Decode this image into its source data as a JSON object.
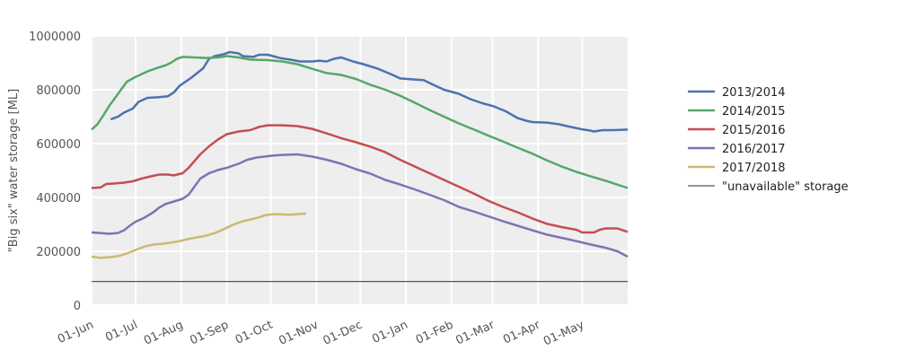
{
  "chart_data": {
    "type": "line",
    "ylabel": "\"Big six\" water storage [ML]",
    "ylim": [
      0,
      1000000
    ],
    "yticks": [
      0,
      200000,
      400000,
      600000,
      800000,
      1000000
    ],
    "ytick_labels": [
      "0",
      "200000",
      "400000",
      "600000",
      "800000",
      "1000000"
    ],
    "x_unit": "day of season starting 01-Jun",
    "xlim": [
      0,
      365
    ],
    "xticks": [
      0,
      30,
      61,
      92,
      122,
      153,
      183,
      214,
      245,
      273,
      304,
      334
    ],
    "xtick_labels": [
      "01-Jun",
      "01-Jul",
      "01-Aug",
      "01-Sep",
      "01-Oct",
      "01-Nov",
      "01-Dec",
      "01-Jan",
      "01-Feb",
      "01-Mar",
      "01-Apr",
      "01-May"
    ],
    "grid": true,
    "legend_position": "right",
    "reference_line": {
      "name": "\"unavailable\" storage",
      "value": 88000,
      "color": "#555555"
    },
    "series": [
      {
        "name": "2013/2014",
        "color": "#4c72b0",
        "points": [
          [
            13,
            690000
          ],
          [
            18,
            700000
          ],
          [
            22,
            715000
          ],
          [
            28,
            730000
          ],
          [
            32,
            755000
          ],
          [
            38,
            770000
          ],
          [
            45,
            772000
          ],
          [
            52,
            776000
          ],
          [
            56,
            790000
          ],
          [
            60,
            815000
          ],
          [
            68,
            845000
          ],
          [
            76,
            880000
          ],
          [
            80,
            915000
          ],
          [
            84,
            925000
          ],
          [
            90,
            932000
          ],
          [
            94,
            940000
          ],
          [
            100,
            935000
          ],
          [
            103,
            925000
          ],
          [
            110,
            922000
          ],
          [
            114,
            930000
          ],
          [
            120,
            930000
          ],
          [
            128,
            918000
          ],
          [
            135,
            912000
          ],
          [
            142,
            905000
          ],
          [
            150,
            905000
          ],
          [
            155,
            908000
          ],
          [
            160,
            905000
          ],
          [
            165,
            915000
          ],
          [
            170,
            920000
          ],
          [
            178,
            905000
          ],
          [
            185,
            895000
          ],
          [
            195,
            878000
          ],
          [
            205,
            855000
          ],
          [
            210,
            842000
          ],
          [
            220,
            838000
          ],
          [
            226,
            836000
          ],
          [
            232,
            820000
          ],
          [
            240,
            800000
          ],
          [
            250,
            785000
          ],
          [
            258,
            765000
          ],
          [
            266,
            750000
          ],
          [
            274,
            738000
          ],
          [
            282,
            720000
          ],
          [
            290,
            695000
          ],
          [
            296,
            685000
          ],
          [
            300,
            680000
          ],
          [
            310,
            678000
          ],
          [
            318,
            672000
          ],
          [
            326,
            662000
          ],
          [
            334,
            653000
          ],
          [
            340,
            648000
          ],
          [
            342,
            645000
          ],
          [
            348,
            650000
          ],
          [
            355,
            650000
          ],
          [
            365,
            652000
          ]
        ]
      },
      {
        "name": "2014/2015",
        "color": "#55a868",
        "points": [
          [
            0,
            652000
          ],
          [
            4,
            672000
          ],
          [
            8,
            705000
          ],
          [
            12,
            740000
          ],
          [
            16,
            770000
          ],
          [
            20,
            800000
          ],
          [
            24,
            830000
          ],
          [
            30,
            848000
          ],
          [
            38,
            868000
          ],
          [
            44,
            880000
          ],
          [
            50,
            890000
          ],
          [
            54,
            900000
          ],
          [
            58,
            915000
          ],
          [
            62,
            922000
          ],
          [
            70,
            920000
          ],
          [
            78,
            918000
          ],
          [
            86,
            920000
          ],
          [
            92,
            925000
          ],
          [
            100,
            920000
          ],
          [
            108,
            912000
          ],
          [
            120,
            910000
          ],
          [
            130,
            905000
          ],
          [
            140,
            895000
          ],
          [
            150,
            878000
          ],
          [
            160,
            862000
          ],
          [
            170,
            855000
          ],
          [
            180,
            840000
          ],
          [
            190,
            818000
          ],
          [
            200,
            800000
          ],
          [
            210,
            778000
          ],
          [
            220,
            752000
          ],
          [
            230,
            725000
          ],
          [
            240,
            700000
          ],
          [
            250,
            675000
          ],
          [
            260,
            653000
          ],
          [
            270,
            630000
          ],
          [
            280,
            608000
          ],
          [
            290,
            585000
          ],
          [
            300,
            563000
          ],
          [
            310,
            538000
          ],
          [
            320,
            515000
          ],
          [
            330,
            495000
          ],
          [
            340,
            478000
          ],
          [
            350,
            462000
          ],
          [
            365,
            435000
          ]
        ]
      },
      {
        "name": "2015/2016",
        "color": "#c44e52",
        "points": [
          [
            0,
            435000
          ],
          [
            6,
            437000
          ],
          [
            10,
            450000
          ],
          [
            16,
            452000
          ],
          [
            22,
            455000
          ],
          [
            28,
            460000
          ],
          [
            34,
            470000
          ],
          [
            40,
            478000
          ],
          [
            46,
            485000
          ],
          [
            52,
            485000
          ],
          [
            56,
            482000
          ],
          [
            62,
            490000
          ],
          [
            66,
            510000
          ],
          [
            70,
            535000
          ],
          [
            74,
            560000
          ],
          [
            80,
            590000
          ],
          [
            86,
            615000
          ],
          [
            92,
            635000
          ],
          [
            100,
            645000
          ],
          [
            108,
            650000
          ],
          [
            114,
            662000
          ],
          [
            120,
            668000
          ],
          [
            130,
            668000
          ],
          [
            140,
            665000
          ],
          [
            150,
            655000
          ],
          [
            160,
            638000
          ],
          [
            170,
            620000
          ],
          [
            180,
            605000
          ],
          [
            190,
            588000
          ],
          [
            200,
            568000
          ],
          [
            210,
            540000
          ],
          [
            220,
            515000
          ],
          [
            230,
            490000
          ],
          [
            240,
            465000
          ],
          [
            250,
            440000
          ],
          [
            260,
            415000
          ],
          [
            270,
            388000
          ],
          [
            280,
            365000
          ],
          [
            290,
            345000
          ],
          [
            300,
            322000
          ],
          [
            310,
            302000
          ],
          [
            320,
            290000
          ],
          [
            330,
            280000
          ],
          [
            334,
            270000
          ],
          [
            342,
            270000
          ],
          [
            346,
            280000
          ],
          [
            350,
            285000
          ],
          [
            358,
            285000
          ],
          [
            365,
            272000
          ]
        ]
      },
      {
        "name": "2016/2017",
        "color": "#8172b2",
        "points": [
          [
            0,
            270000
          ],
          [
            6,
            268000
          ],
          [
            12,
            265000
          ],
          [
            18,
            268000
          ],
          [
            22,
            278000
          ],
          [
            26,
            295000
          ],
          [
            30,
            310000
          ],
          [
            36,
            325000
          ],
          [
            42,
            345000
          ],
          [
            46,
            362000
          ],
          [
            50,
            375000
          ],
          [
            56,
            385000
          ],
          [
            62,
            395000
          ],
          [
            66,
            410000
          ],
          [
            70,
            440000
          ],
          [
            74,
            470000
          ],
          [
            80,
            490000
          ],
          [
            86,
            502000
          ],
          [
            92,
            510000
          ],
          [
            100,
            525000
          ],
          [
            106,
            540000
          ],
          [
            112,
            548000
          ],
          [
            118,
            552000
          ],
          [
            124,
            556000
          ],
          [
            130,
            558000
          ],
          [
            140,
            560000
          ],
          [
            150,
            552000
          ],
          [
            160,
            540000
          ],
          [
            170,
            525000
          ],
          [
            180,
            505000
          ],
          [
            190,
            488000
          ],
          [
            200,
            465000
          ],
          [
            210,
            448000
          ],
          [
            220,
            430000
          ],
          [
            230,
            410000
          ],
          [
            240,
            390000
          ],
          [
            250,
            365000
          ],
          [
            260,
            348000
          ],
          [
            270,
            330000
          ],
          [
            280,
            312000
          ],
          [
            290,
            295000
          ],
          [
            300,
            278000
          ],
          [
            310,
            262000
          ],
          [
            320,
            250000
          ],
          [
            330,
            238000
          ],
          [
            340,
            225000
          ],
          [
            350,
            213000
          ],
          [
            358,
            200000
          ],
          [
            365,
            180000
          ]
        ]
      },
      {
        "name": "2017/2018",
        "color": "#ccb974",
        "points": [
          [
            0,
            180000
          ],
          [
            6,
            176000
          ],
          [
            12,
            178000
          ],
          [
            18,
            182000
          ],
          [
            24,
            192000
          ],
          [
            30,
            205000
          ],
          [
            36,
            218000
          ],
          [
            42,
            225000
          ],
          [
            48,
            228000
          ],
          [
            54,
            232000
          ],
          [
            60,
            238000
          ],
          [
            66,
            246000
          ],
          [
            72,
            252000
          ],
          [
            78,
            258000
          ],
          [
            84,
            268000
          ],
          [
            90,
            282000
          ],
          [
            96,
            298000
          ],
          [
            102,
            310000
          ],
          [
            108,
            318000
          ],
          [
            114,
            326000
          ],
          [
            118,
            334000
          ],
          [
            124,
            338000
          ],
          [
            130,
            337000
          ],
          [
            136,
            336000
          ],
          [
            140,
            338000
          ],
          [
            146,
            340000
          ]
        ]
      }
    ]
  }
}
